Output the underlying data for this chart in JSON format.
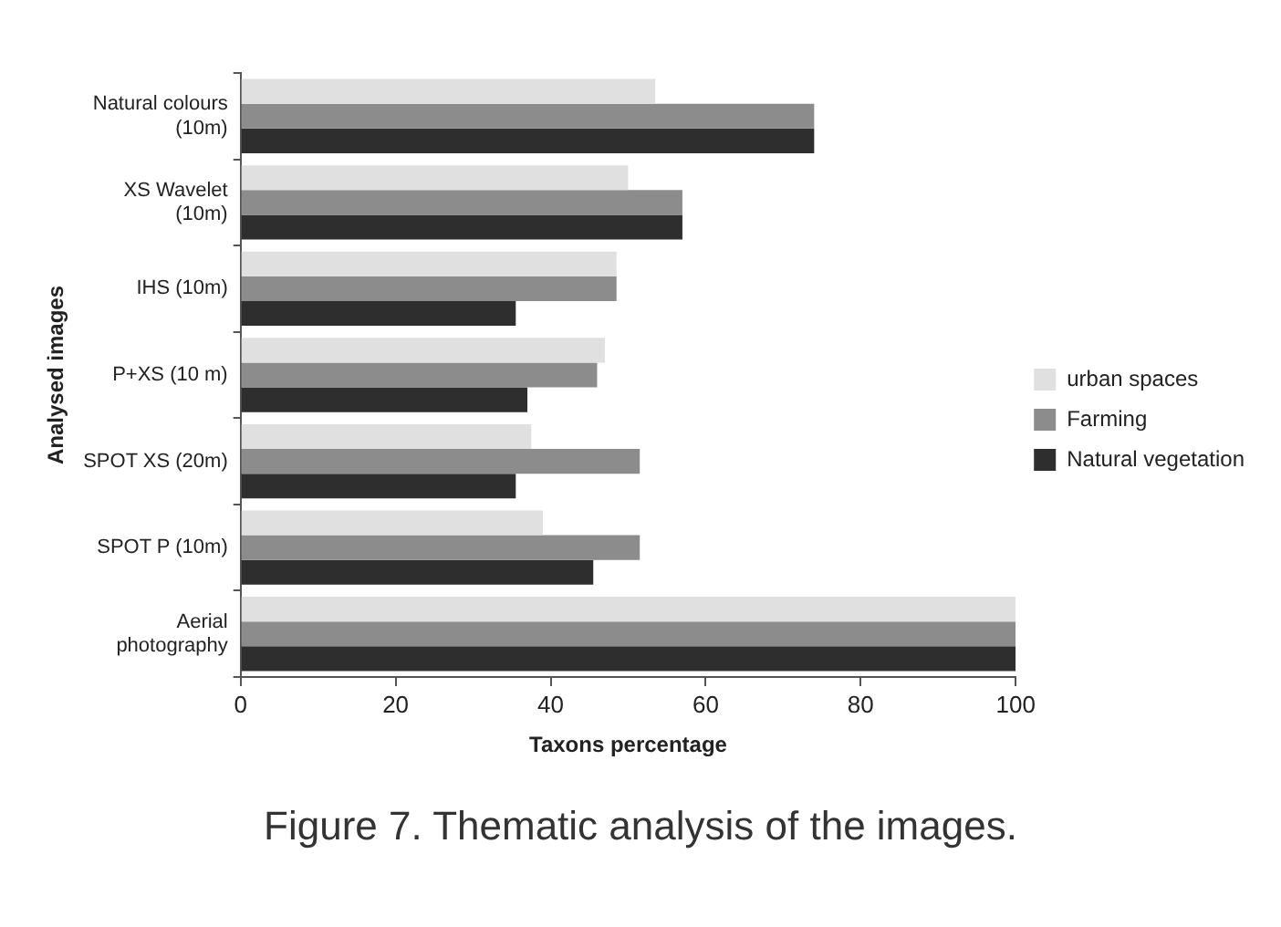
{
  "chart_data": {
    "type": "bar",
    "orientation": "horizontal",
    "xlabel": "Taxons percentage",
    "ylabel": "Analysed images",
    "categories": [
      "Natural colours (10m)",
      "XS Wavelet (10m)",
      "IHS (10m)",
      "P+XS (10 m)",
      "SPOT XS (20m)",
      "SPOT P (10m)",
      "Aerial photography"
    ],
    "series": [
      {
        "name": "urban spaces",
        "color": "#e0e0e0",
        "values": [
          53.5,
          50,
          48.5,
          47,
          37.5,
          39,
          100
        ]
      },
      {
        "name": "Farming",
        "color": "#8c8c8c",
        "values": [
          74,
          57,
          48.5,
          46,
          51.5,
          51.5,
          100
        ]
      },
      {
        "name": "Natural vegetation",
        "color": "#2e2e2e",
        "values": [
          74,
          57,
          35.5,
          37,
          35.5,
          45.5,
          100
        ]
      }
    ],
    "xlim": [
      0,
      100
    ],
    "xticks": [
      0,
      20,
      40,
      60,
      80,
      100
    ],
    "grid": false,
    "legend": "right",
    "annotations": [
      "Figure 7. Thematic analysis of the images."
    ]
  }
}
